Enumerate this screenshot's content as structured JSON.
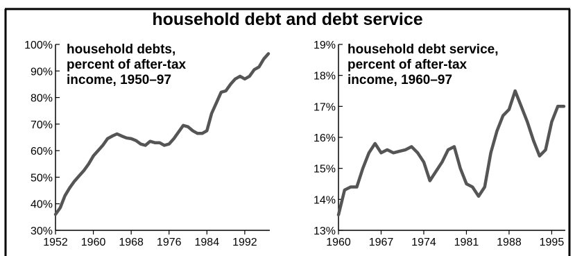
{
  "page": {
    "title": "household debt and debt service"
  },
  "chart_data": [
    {
      "type": "line",
      "title_lines": [
        "household debts,",
        "percent of  after-tax",
        "income, 1950–97"
      ],
      "xlabel": "",
      "ylabel": "",
      "xlim": [
        1952,
        1997
      ],
      "ylim": [
        30,
        100
      ],
      "x_ticks": [
        1952,
        1960,
        1968,
        1976,
        1984,
        1992
      ],
      "y_ticks": [
        30,
        40,
        50,
        60,
        70,
        80,
        90,
        100
      ],
      "x_tick_labels": [
        "1952",
        "1960",
        "1968",
        "1976",
        "1984",
        "1992"
      ],
      "y_tick_labels": [
        "30%",
        "40%",
        "50%",
        "60%",
        "70%",
        "80%",
        "90%",
        "100%"
      ],
      "grid": false,
      "series": [
        {
          "color": "#555555",
          "x": [
            1952,
            1953,
            1954,
            1955,
            1956,
            1957,
            1958,
            1959,
            1960,
            1961,
            1962,
            1963,
            1964,
            1965,
            1966,
            1967,
            1968,
            1969,
            1970,
            1971,
            1972,
            1973,
            1974,
            1975,
            1976,
            1977,
            1978,
            1979,
            1980,
            1981,
            1982,
            1983,
            1984,
            1985,
            1986,
            1987,
            1988,
            1989,
            1990,
            1991,
            1992,
            1993,
            1994,
            1995,
            1996,
            1997
          ],
          "y": [
            36,
            38.5,
            43,
            46,
            48.5,
            50.5,
            52.5,
            55,
            58,
            60,
            62,
            64.5,
            65.5,
            66.3,
            65.5,
            64.8,
            64.5,
            63.8,
            62.5,
            62,
            63.5,
            63,
            63,
            62,
            62.5,
            64.5,
            67,
            69.5,
            69,
            67.5,
            66.5,
            66.5,
            67.5,
            74,
            78,
            82,
            82.5,
            85,
            87,
            88,
            87,
            88,
            90.5,
            91.5,
            94.5,
            96.5
          ]
        }
      ]
    },
    {
      "type": "line",
      "title_lines": [
        "household debt service,",
        "percent of after-tax",
        "income, 1960–97"
      ],
      "xlabel": "",
      "ylabel": "",
      "xlim": [
        1960,
        1997
      ],
      "ylim": [
        13,
        19
      ],
      "x_ticks": [
        1960,
        1967,
        1974,
        1981,
        1988,
        1995
      ],
      "y_ticks": [
        13,
        14,
        15,
        16,
        17,
        18,
        19
      ],
      "x_tick_labels": [
        "1960",
        "1967",
        "1974",
        "1981",
        "1988",
        "1995"
      ],
      "y_tick_labels": [
        "13%",
        "14%",
        "15%",
        "16%",
        "17%",
        "18%",
        "19%"
      ],
      "grid": false,
      "series": [
        {
          "color": "#555555",
          "x": [
            1960,
            1961,
            1962,
            1963,
            1964,
            1965,
            1966,
            1967,
            1968,
            1969,
            1970,
            1971,
            1972,
            1973,
            1974,
            1975,
            1976,
            1977,
            1978,
            1979,
            1980,
            1981,
            1982,
            1983,
            1984,
            1985,
            1986,
            1987,
            1988,
            1989,
            1990,
            1991,
            1992,
            1993,
            1994,
            1995,
            1996,
            1997
          ],
          "y": [
            13.5,
            14.3,
            14.4,
            14.4,
            15.0,
            15.5,
            15.8,
            15.5,
            15.6,
            15.5,
            15.55,
            15.6,
            15.7,
            15.5,
            15.2,
            14.6,
            14.9,
            15.2,
            15.6,
            15.7,
            15.0,
            14.5,
            14.4,
            14.1,
            14.4,
            15.5,
            16.2,
            16.7,
            16.9,
            17.5,
            17.0,
            16.5,
            15.9,
            15.4,
            15.6,
            16.5,
            17.0,
            17.0
          ]
        }
      ]
    }
  ]
}
